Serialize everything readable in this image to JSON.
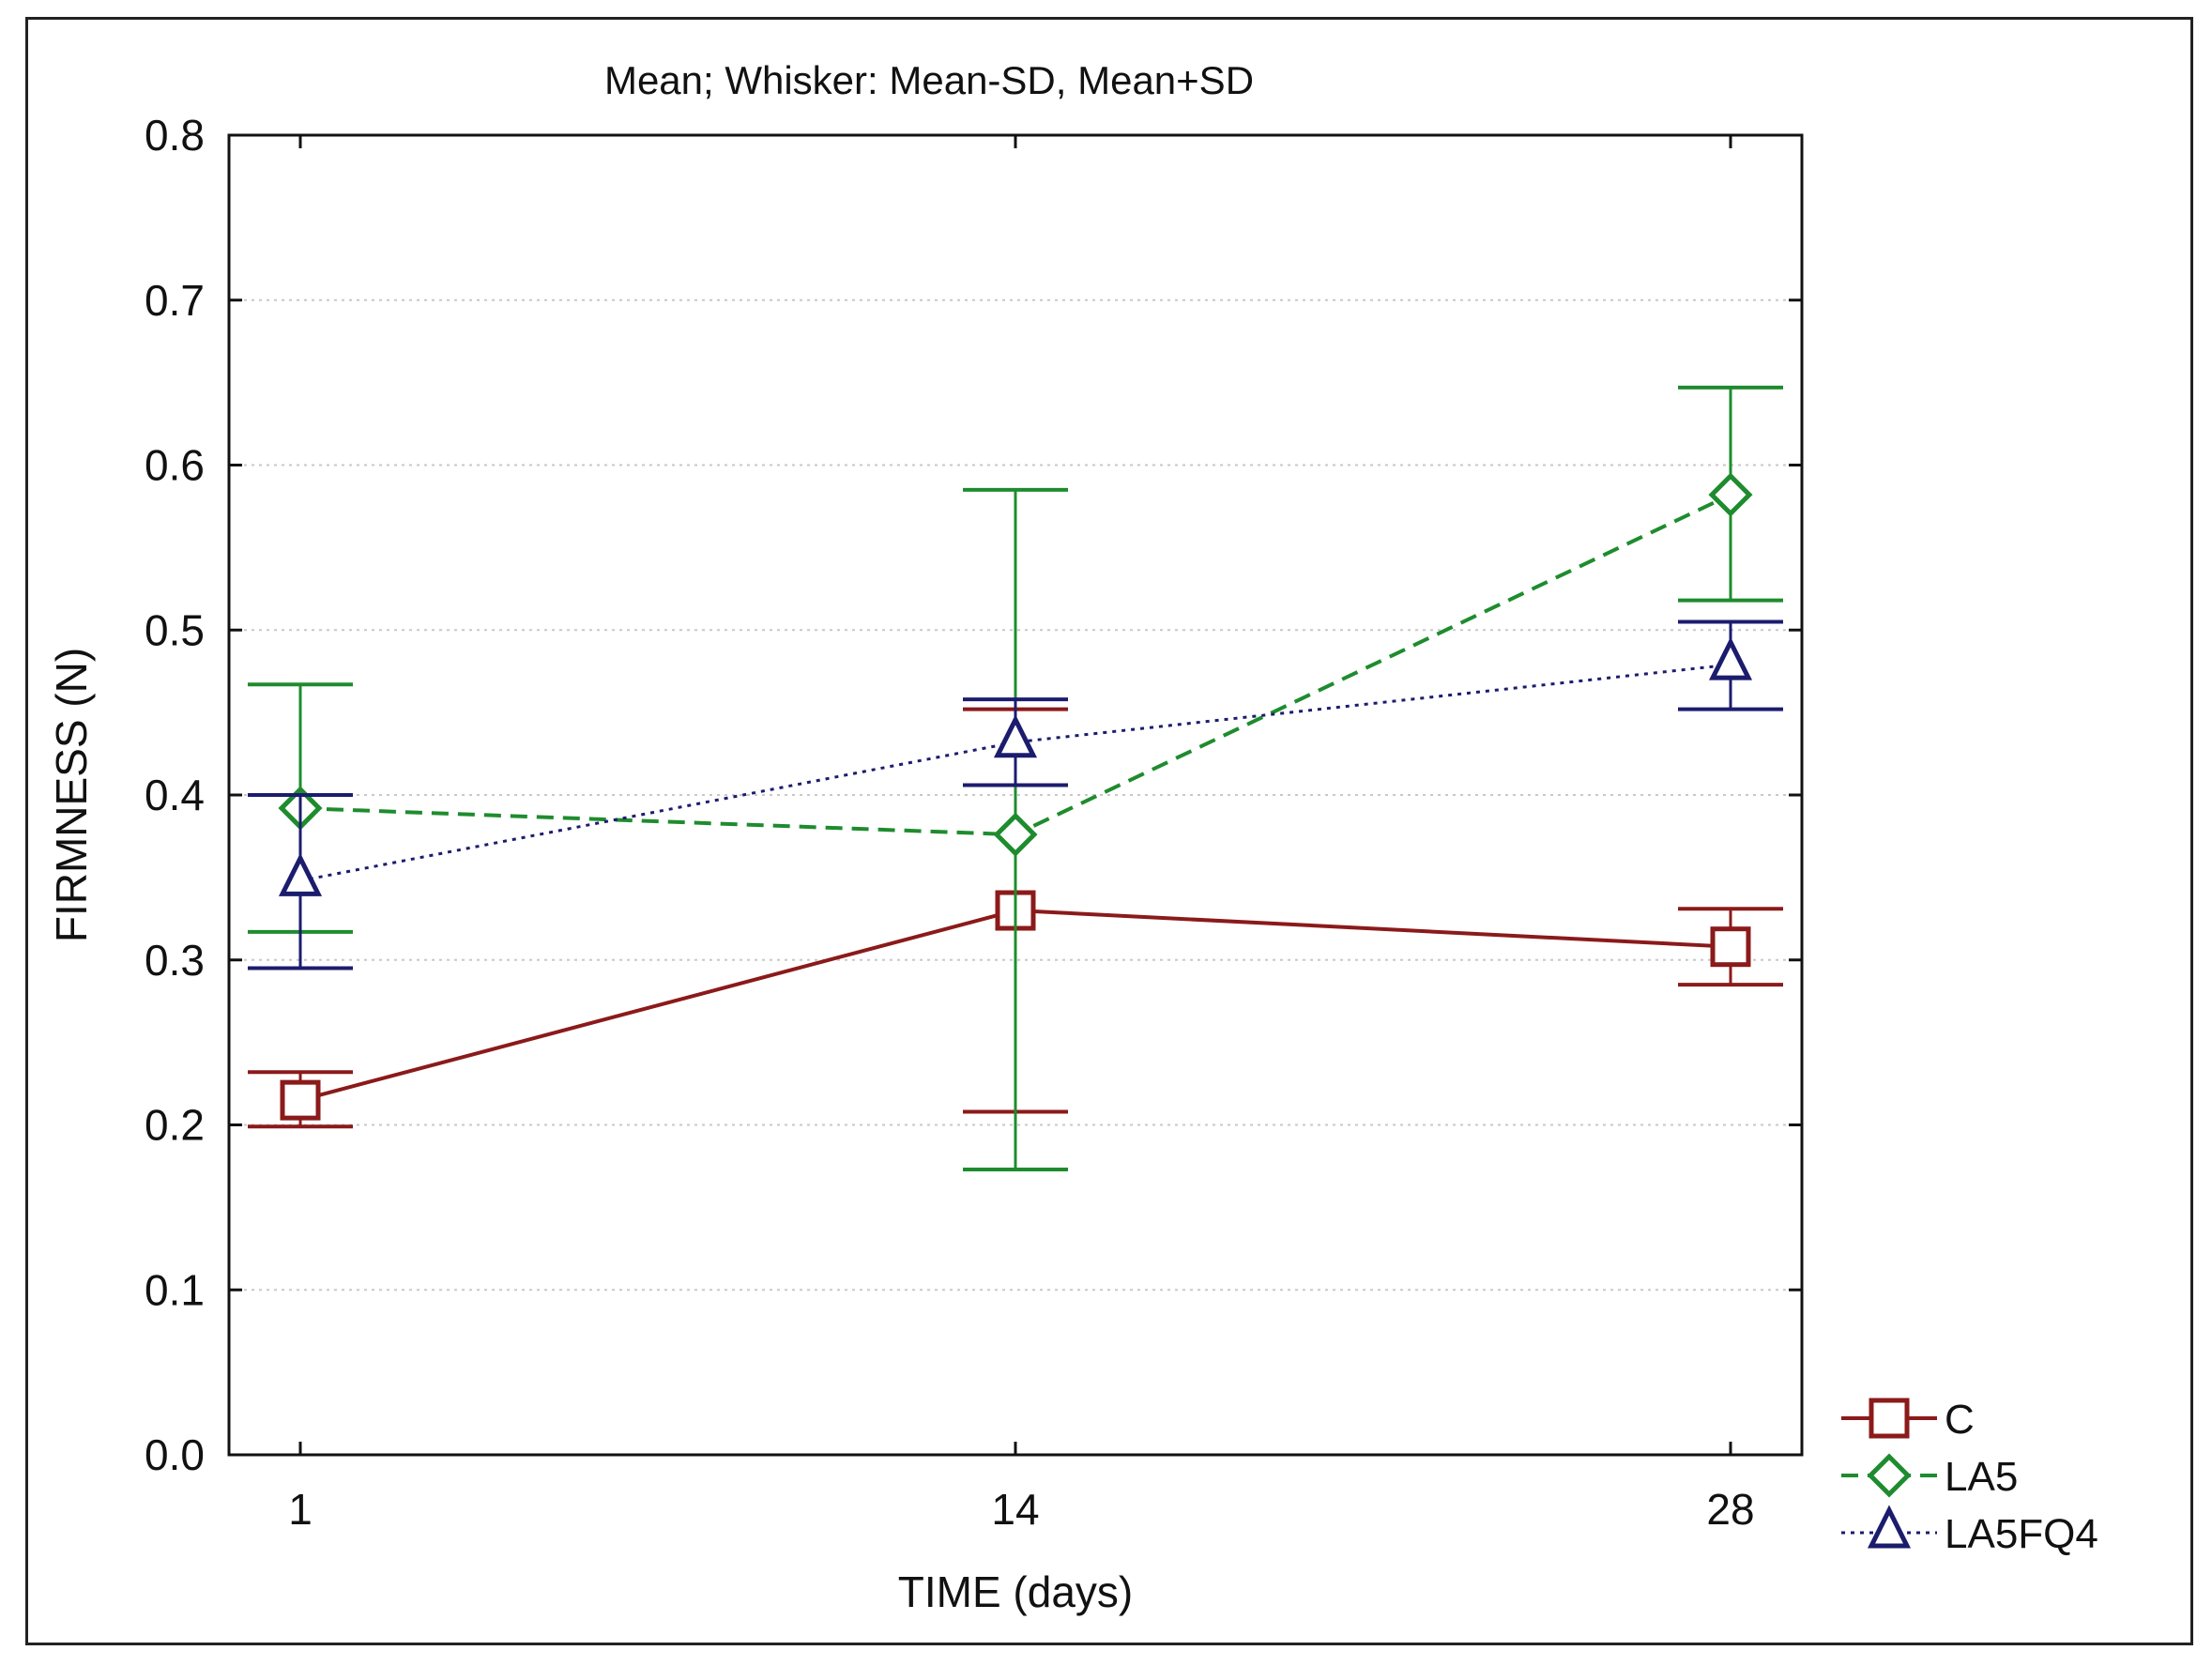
{
  "chart_data": {
    "type": "line",
    "title": "Mean;  Whisker: Mean-SD, Mean+SD",
    "xlabel": "TIME (days)",
    "ylabel": "FIRMNESS (N)",
    "categories": [
      "1",
      "14",
      "28"
    ],
    "ylim": [
      0.0,
      0.8
    ],
    "yticks": [
      "0.0",
      "0.1",
      "0.2",
      "0.3",
      "0.4",
      "0.5",
      "0.6",
      "0.7",
      "0.8"
    ],
    "grid": true,
    "legend_position": "bottom-right, outside plot",
    "series": [
      {
        "name": "C",
        "color": "#8b1a1a",
        "line_style": "solid",
        "marker": "square",
        "values": [
          0.215,
          0.33,
          0.308
        ],
        "lower": [
          0.199,
          0.208,
          0.285
        ],
        "upper": [
          0.232,
          0.452,
          0.331
        ]
      },
      {
        "name": "LA5",
        "color": "#1e8c2e",
        "line_style": "dashed",
        "marker": "diamond",
        "values": [
          0.392,
          0.376,
          0.582
        ],
        "lower": [
          0.317,
          0.173,
          0.518
        ],
        "upper": [
          0.467,
          0.585,
          0.647
        ]
      },
      {
        "name": "LA5FQ4",
        "color": "#1c1c6e",
        "line_style": "dotted",
        "marker": "triangle",
        "values": [
          0.348,
          0.432,
          0.479
        ],
        "lower": [
          0.295,
          0.406,
          0.452
        ],
        "upper": [
          0.4,
          0.458,
          0.505
        ]
      }
    ]
  }
}
